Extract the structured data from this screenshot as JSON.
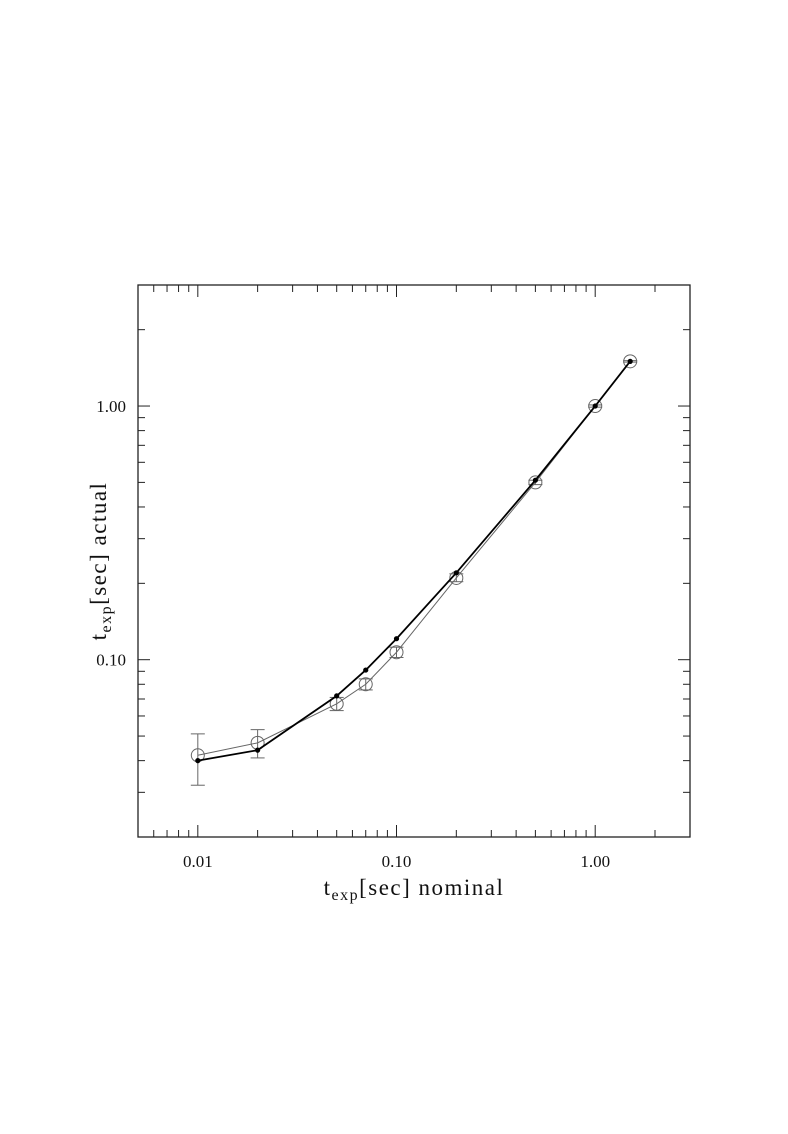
{
  "chart_data": {
    "type": "scatter",
    "title": "",
    "x_scale": "log",
    "y_scale": "log",
    "xlim": [
      0.005,
      3.0
    ],
    "ylim": [
      0.02,
      3.0
    ],
    "grid": false,
    "x_ticks": [
      {
        "value": 0.01,
        "label": "0.01"
      },
      {
        "value": 0.1,
        "label": "0.10"
      },
      {
        "value": 1.0,
        "label": "1.00"
      }
    ],
    "y_ticks": [
      {
        "value": 0.1,
        "label": "0.10"
      },
      {
        "value": 1.0,
        "label": "1.00"
      }
    ],
    "xlabel": {
      "base": "t",
      "sub": "exp",
      "rest": "[sec] nominal"
    },
    "ylabel": {
      "base": "t",
      "sub": "exp",
      "rest": "[sec] actual"
    },
    "series": [
      {
        "marker": "open-circle",
        "color": "#666666",
        "points": [
          {
            "x": 0.01,
            "y": 0.042,
            "yerr_low": 0.032,
            "yerr_high": 0.051
          },
          {
            "x": 0.02,
            "y": 0.047,
            "yerr_low": 0.041,
            "yerr_high": 0.053
          },
          {
            "x": 0.05,
            "y": 0.067,
            "yerr_low": 0.063,
            "yerr_high": 0.071
          },
          {
            "x": 0.07,
            "y": 0.08,
            "yerr_low": 0.076,
            "yerr_high": 0.084
          },
          {
            "x": 0.1,
            "y": 0.107,
            "yerr_low": 0.102,
            "yerr_high": 0.112
          },
          {
            "x": 0.2,
            "y": 0.21,
            "yerr_low": 0.203,
            "yerr_high": 0.218
          },
          {
            "x": 0.5,
            "y": 0.5,
            "yerr_low": 0.49,
            "yerr_high": 0.51
          },
          {
            "x": 1.0,
            "y": 1.0,
            "yerr_low": 0.99,
            "yerr_high": 1.01
          },
          {
            "x": 1.5,
            "y": 1.5,
            "yerr_low": 1.49,
            "yerr_high": 1.51
          }
        ]
      },
      {
        "marker": "filled-dot",
        "color": "#000000",
        "points": [
          {
            "x": 0.01,
            "y": 0.04
          },
          {
            "x": 0.02,
            "y": 0.044
          },
          {
            "x": 0.05,
            "y": 0.072
          },
          {
            "x": 0.07,
            "y": 0.091
          },
          {
            "x": 0.1,
            "y": 0.121
          },
          {
            "x": 0.2,
            "y": 0.22
          },
          {
            "x": 0.5,
            "y": 0.51
          },
          {
            "x": 1.0,
            "y": 1.0
          },
          {
            "x": 1.5,
            "y": 1.5
          }
        ]
      }
    ]
  }
}
